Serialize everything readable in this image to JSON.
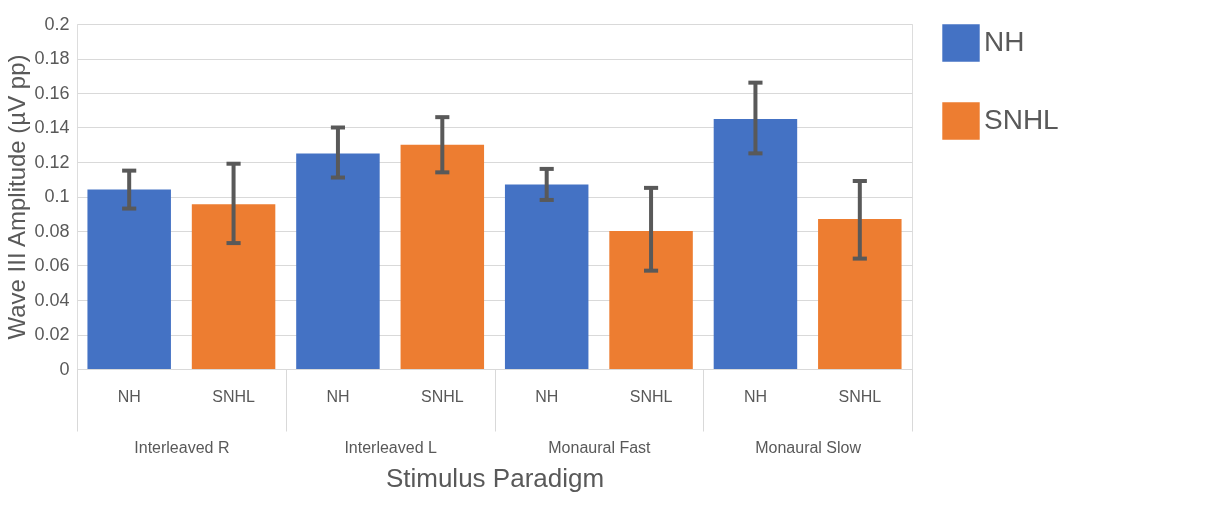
{
  "chart_data": {
    "type": "bar",
    "xlabel": "Stimulus Paradigm",
    "ylabel": "Wave III Amplitude (µV pp)",
    "categories": [
      "Interleaved R",
      "Interleaved L",
      "Monaural Fast",
      "Monaural Slow"
    ],
    "series": [
      {
        "name": "NH",
        "color": "#4472c4",
        "values": [
          0.104,
          0.125,
          0.107,
          0.145
        ],
        "errors": [
          [
            0.093,
            0.115
          ],
          [
            0.111,
            0.14
          ],
          [
            0.098,
            0.116
          ],
          [
            0.125,
            0.166
          ]
        ]
      },
      {
        "name": "SNHL",
        "color": "#ed7d31",
        "values": [
          0.0955,
          0.13,
          0.08,
          0.087
        ],
        "errors": [
          [
            0.073,
            0.119
          ],
          [
            0.114,
            0.146
          ],
          [
            0.057,
            0.105
          ],
          [
            0.064,
            0.109
          ]
        ]
      }
    ],
    "ylim": [
      0,
      0.2
    ],
    "yticks": [
      0,
      0.02,
      0.04,
      0.06,
      0.08,
      0.1,
      0.12,
      0.14,
      0.16,
      0.18,
      0.2
    ],
    "grid": "y",
    "legend": "right"
  }
}
